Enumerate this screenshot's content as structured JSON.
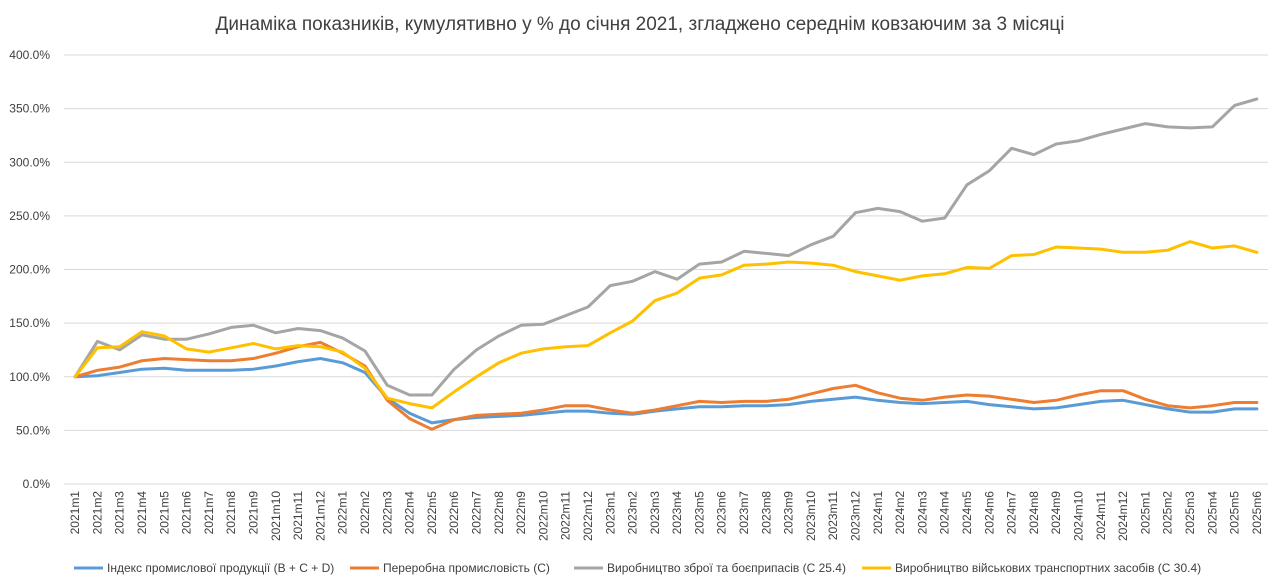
{
  "chart_data": {
    "type": "line",
    "title": "Динаміка показників, кумулятивно у % до січня 2021, згладжено середнім ковзаючим за 3 місяці",
    "xlabel": "",
    "ylabel": "",
    "ylim": [
      0,
      400
    ],
    "yticks": [
      "0.0%",
      "50.0%",
      "100.0%",
      "150.0%",
      "200.0%",
      "250.0%",
      "300.0%",
      "350.0%",
      "400.0%"
    ],
    "grid": true,
    "legend_position": "bottom",
    "categories": [
      "2021m1",
      "2021m2",
      "2021m3",
      "2021m4",
      "2021m5",
      "2021m6",
      "2021m7",
      "2021m8",
      "2021m9",
      "2021m10",
      "2021m11",
      "2021m12",
      "2022m1",
      "2022m2",
      "2022m3",
      "2022m4",
      "2022m5",
      "2022m6",
      "2022m7",
      "2022m8",
      "2022m9",
      "2022m10",
      "2022m11",
      "2022m12",
      "2023m1",
      "2023m2",
      "2023m3",
      "2023m4",
      "2023m5",
      "2023m6",
      "2023m7",
      "2023m8",
      "2023m9",
      "2023m10",
      "2023m11",
      "2023m12",
      "2024m1",
      "2024m2",
      "2024m3",
      "2024m4",
      "2024m5",
      "2024m6",
      "2024m7",
      "2024m8",
      "2024m9",
      "2024m10",
      "2024m11",
      "2024m12",
      "2025m1",
      "2025m2",
      "2025m3",
      "2025m4",
      "2025m5",
      "2025m6"
    ],
    "series": [
      {
        "name": "Індекс промислової продукції (B + C + D)",
        "color": "#5b9bd5",
        "values": [
          100,
          101,
          104,
          107,
          108,
          106,
          106,
          106,
          107,
          110,
          114,
          117,
          113,
          104,
          80,
          66,
          57,
          60,
          62,
          63,
          64,
          66,
          68,
          68,
          66,
          65,
          68,
          70,
          72,
          72,
          73,
          73,
          74,
          77,
          79,
          81,
          78,
          76,
          75,
          76,
          77,
          74,
          72,
          70,
          71,
          74,
          77,
          78,
          74,
          70,
          67,
          67,
          70,
          70
        ]
      },
      {
        "name": "Переробна промисловість (С)",
        "color": "#ed7d31",
        "values": [
          100,
          106,
          109,
          115,
          117,
          116,
          115,
          115,
          117,
          122,
          128,
          132,
          122,
          110,
          78,
          61,
          51,
          60,
          64,
          65,
          66,
          69,
          73,
          73,
          69,
          66,
          69,
          73,
          77,
          76,
          77,
          77,
          79,
          84,
          89,
          92,
          85,
          80,
          78,
          81,
          83,
          82,
          79,
          76,
          78,
          83,
          87,
          87,
          79,
          73,
          71,
          73,
          76,
          76
        ]
      },
      {
        "name": "Виробництво зброї та боєприпасів (С 25.4)",
        "color": "#a5a5a5",
        "values": [
          100,
          133,
          125,
          139,
          135,
          135,
          140,
          146,
          148,
          141,
          145,
          143,
          136,
          124,
          92,
          83,
          83,
          107,
          125,
          138,
          148,
          149,
          157,
          165,
          185,
          189,
          198,
          191,
          205,
          207,
          217,
          215,
          213,
          223,
          231,
          253,
          257,
          254,
          245,
          248,
          279,
          292,
          313,
          307,
          317,
          320,
          326,
          331,
          336,
          333,
          332,
          333,
          353,
          359
        ]
      },
      {
        "name": "Виробництво військових транспортних засобів (С 30.4)",
        "color": "#ffc000",
        "values": [
          100,
          127,
          128,
          142,
          138,
          126,
          123,
          127,
          131,
          126,
          129,
          128,
          123,
          108,
          80,
          75,
          71,
          86,
          100,
          113,
          122,
          126,
          128,
          129,
          141,
          152,
          171,
          178,
          192,
          195,
          204,
          205,
          207,
          206,
          204,
          198,
          194,
          190,
          194,
          196,
          202,
          201,
          213,
          214,
          221,
          220,
          219,
          216,
          216,
          218,
          226,
          220,
          222,
          216
        ]
      }
    ]
  }
}
